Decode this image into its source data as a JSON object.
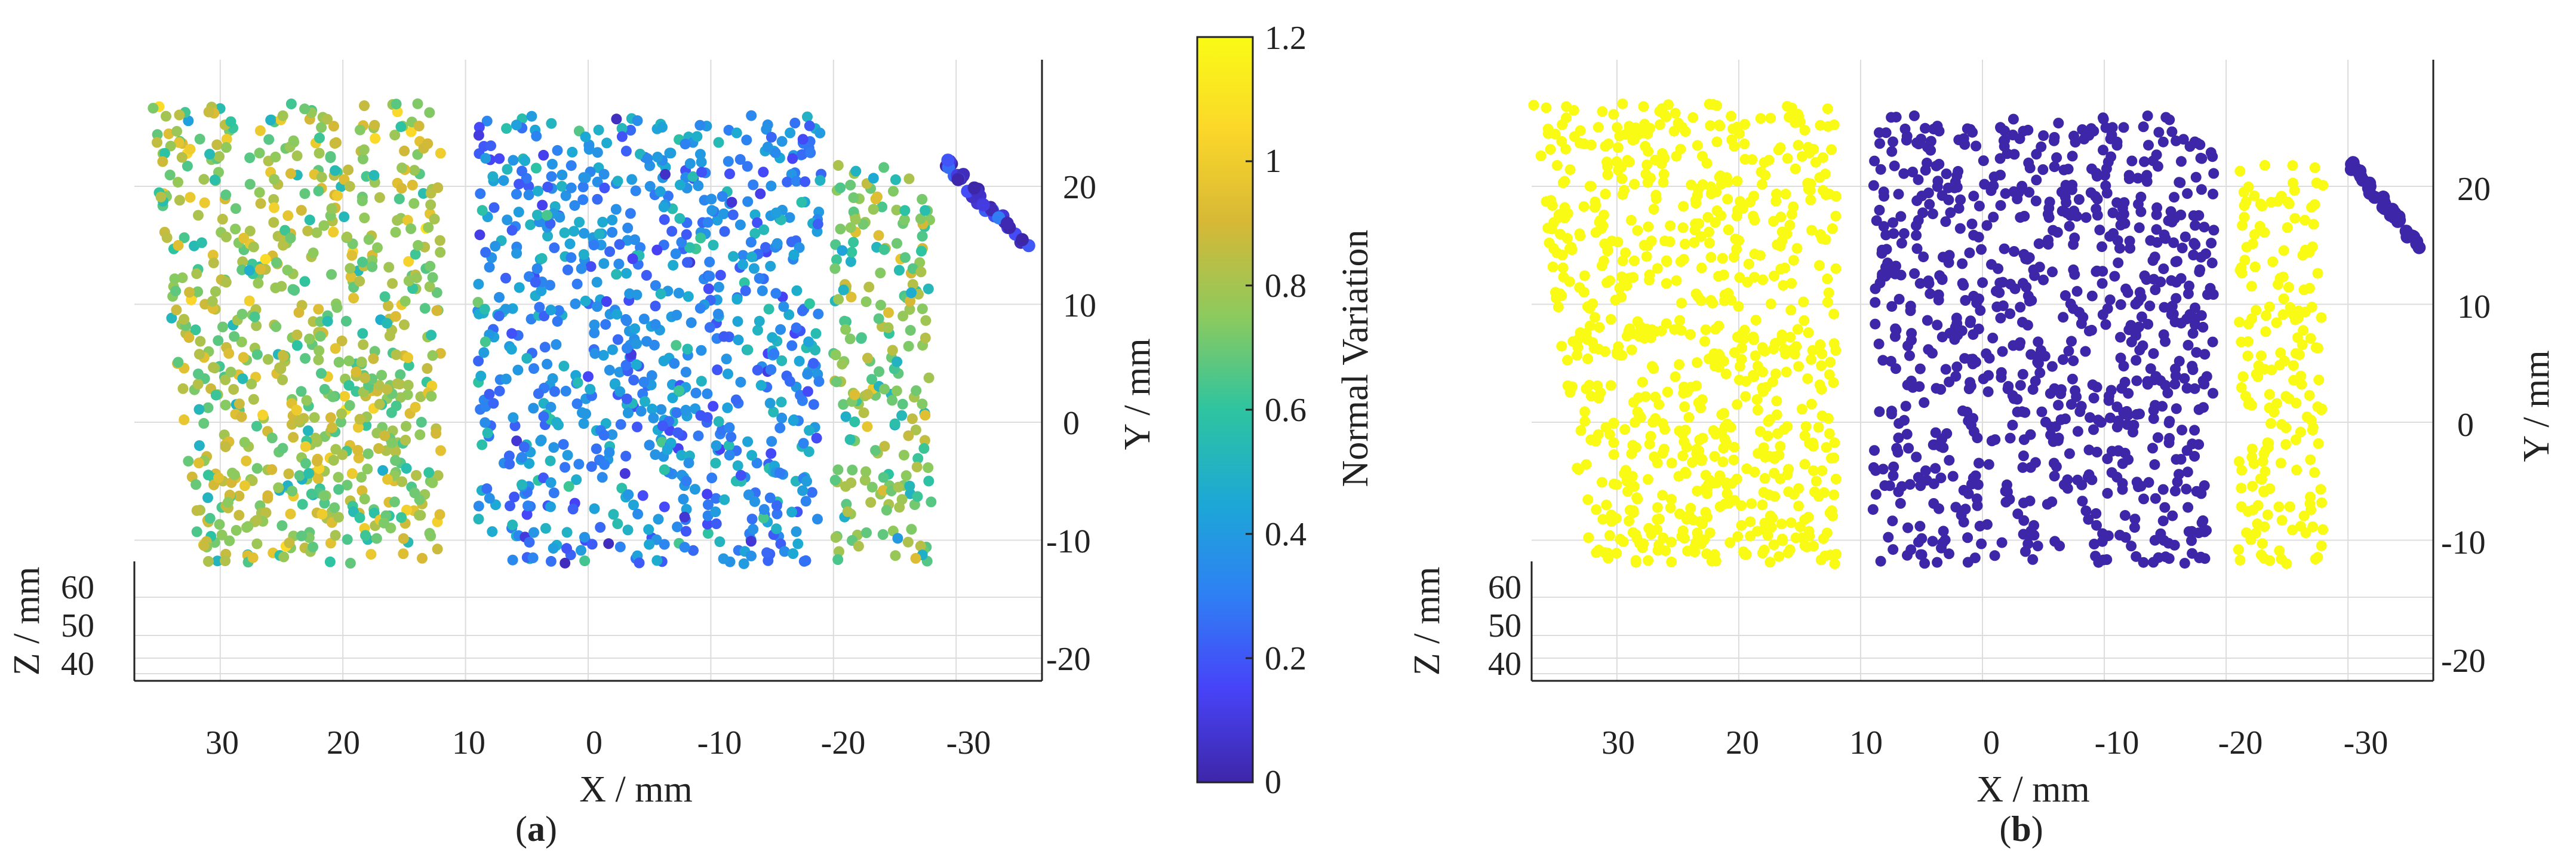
{
  "colors": {
    "colormap": [
      "#3e26a8",
      "#4743f8",
      "#2f7ff4",
      "#1ca8d6",
      "#2ec4a0",
      "#8cca5e",
      "#d6b836",
      "#fbd72a",
      "#f9fb15"
    ],
    "low": "#3e26a8",
    "high": "#f9fb15",
    "grid": "#dcdcdc",
    "axis": "#222222"
  },
  "chart_data": [
    {
      "id": "a",
      "type": "scatter",
      "subtype": "3d-point-cloud",
      "caption_letter": "a",
      "color_mode": "continuous",
      "xlabel": "X / mm",
      "ylabel": "Y / mm",
      "zlabel": "Z / mm",
      "x_ticks": [
        "30",
        "20",
        "10",
        "0",
        "-10",
        "-20",
        "-30"
      ],
      "y_ticks": [
        "20",
        "10",
        "0",
        "-10",
        "-20"
      ],
      "z_ticks": [
        "60",
        "50",
        "40"
      ],
      "x_range": [
        37,
        -37
      ],
      "y_range": [
        -23,
        30
      ],
      "z_range": [
        35,
        68
      ],
      "clusters": [
        {
          "name": "left segment",
          "x_range": [
            36,
            12
          ],
          "y_range": [
            -12,
            27
          ],
          "mean_value": 0.65
        },
        {
          "name": "middle segment",
          "x_range": [
            9,
            -19
          ],
          "y_range": [
            -12,
            26
          ],
          "mean_value": 0.3
        },
        {
          "name": "narrow strip",
          "x_range": [
            -20,
            -28
          ],
          "y_range": [
            -12,
            22
          ],
          "mean_value": 0.6
        },
        {
          "name": "outlier points",
          "x_range": [
            -29,
            -36
          ],
          "y_range": [
            14,
            22
          ],
          "mean_value": 0.1
        }
      ]
    },
    {
      "id": "b",
      "type": "scatter",
      "subtype": "3d-point-cloud",
      "caption_letter": "b",
      "color_mode": "binary",
      "xlabel": "X / mm",
      "ylabel": "Y / mm",
      "zlabel": "Z / mm",
      "x_ticks": [
        "30",
        "20",
        "10",
        "0",
        "-10",
        "-20",
        "-30"
      ],
      "y_ticks": [
        "20",
        "10",
        "0",
        "-10",
        "-20"
      ],
      "z_ticks": [
        "60",
        "50",
        "40"
      ],
      "x_range": [
        37,
        -37
      ],
      "y_range": [
        -23,
        30
      ],
      "z_range": [
        35,
        68
      ],
      "clusters": [
        {
          "name": "left segment",
          "x_range": [
            37,
            12
          ],
          "y_range": [
            -12,
            27
          ],
          "mean_value": 0.85
        },
        {
          "name": "middle segment",
          "x_range": [
            9,
            -19
          ],
          "y_range": [
            -12,
            26
          ],
          "mean_value": 0.08
        },
        {
          "name": "narrow strip",
          "x_range": [
            -21,
            -28
          ],
          "y_range": [
            -12,
            22
          ],
          "mean_value": 0.8
        },
        {
          "name": "outlier points",
          "x_range": [
            -30,
            -36
          ],
          "y_range": [
            14,
            22
          ],
          "mean_value": 0.05
        }
      ]
    },
    {
      "id": "colorbar",
      "type": "heatmap",
      "subtype": "colorbar",
      "label": "Normal Variation",
      "range": [
        0,
        1.2
      ],
      "ticks": [
        "1.2",
        "1",
        "0.8",
        "0.6",
        "0.4",
        "0.2",
        "0"
      ]
    }
  ]
}
